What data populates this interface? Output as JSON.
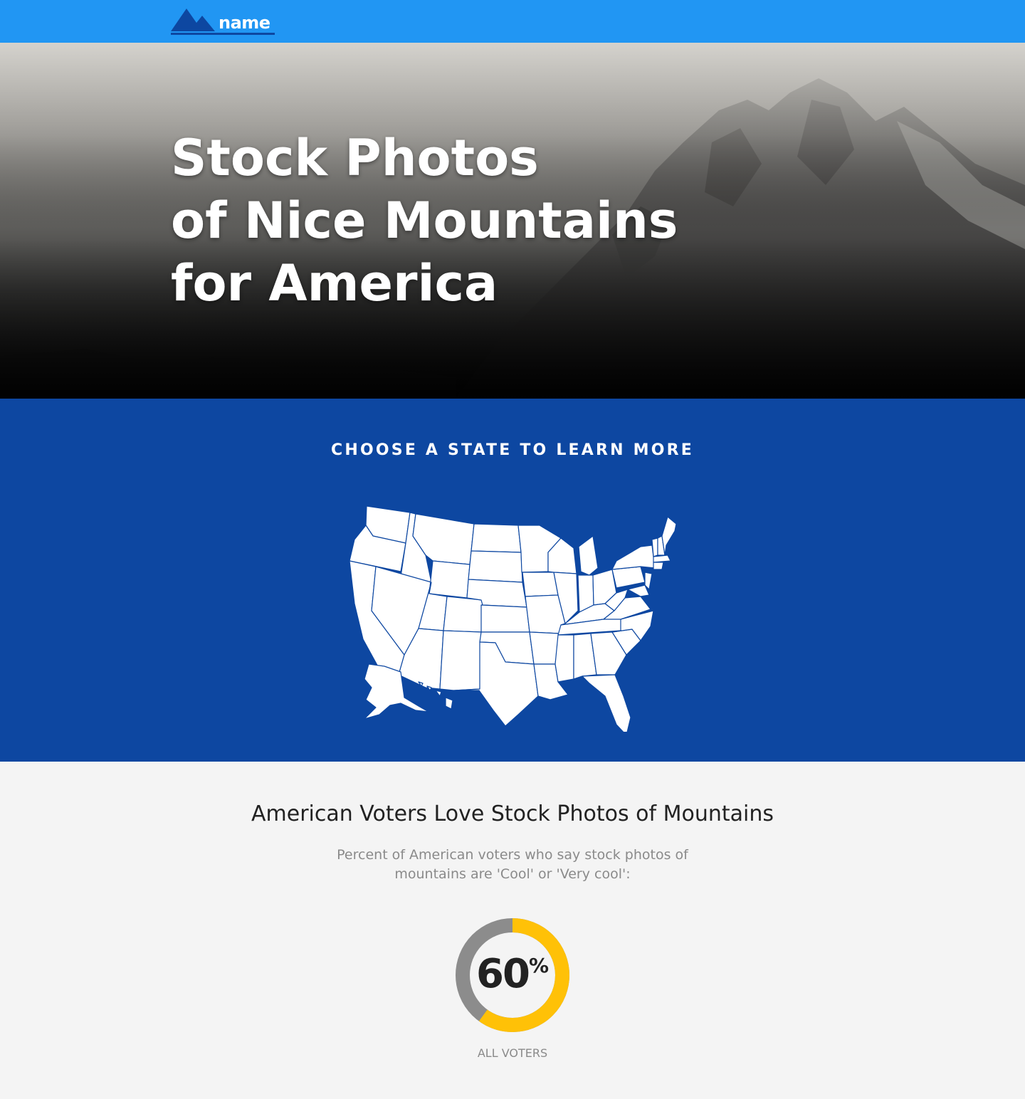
{
  "header": {
    "logo_text": "name",
    "logo_icon": "mountain-icon",
    "colors": {
      "bar": "#2196f3",
      "logo_mark": "#0d47a1"
    }
  },
  "hero": {
    "title_lines": [
      "Stock Photos",
      "of Nice Mountains",
      "for America"
    ]
  },
  "map_section": {
    "heading": "CHOOSE A STATE TO LEARN MORE",
    "background": "#0d47a1"
  },
  "stats": {
    "title": "American Voters Love Stock Photos of Mountains",
    "subtitle": "Percent of American voters who say stock photos of mountains are 'Cool' or 'Very cool':",
    "donut": {
      "value": 60,
      "value_text": "60",
      "unit": "%",
      "label": "ALL VOTERS",
      "colors": {
        "filled": "#ffc107",
        "remainder": "#8c8c8c"
      }
    }
  }
}
